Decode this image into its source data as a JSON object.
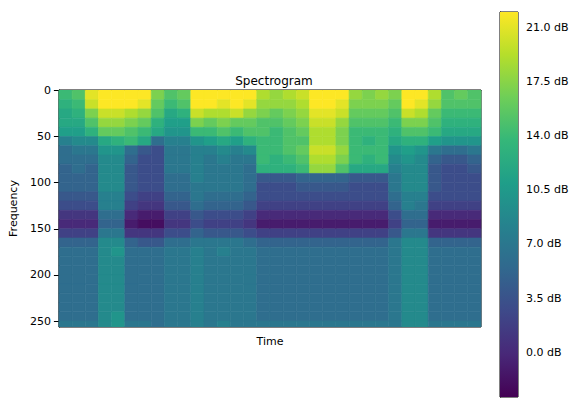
{
  "chart_data": {
    "type": "heatmap",
    "title": "Spectrogram",
    "x_label": "Time",
    "y_label": "Frequency",
    "tick_labels": "y",
    "grid": false,
    "xlim": [
      0,
      32
    ],
    "ylim": [
      256.5,
      -0.5
    ],
    "yticks": [
      0,
      50,
      100,
      150,
      200,
      250
    ],
    "x_bins": [
      0,
      1,
      2,
      3,
      4,
      5,
      6,
      7,
      8,
      9,
      10,
      11,
      12,
      13,
      14,
      15,
      16,
      17,
      18,
      19,
      20,
      21,
      22,
      23,
      24,
      25,
      26,
      27,
      28,
      29,
      30,
      31,
      32
    ],
    "y_bins": [
      -0.5,
      10,
      20,
      30,
      40,
      50,
      60,
      70,
      80,
      90,
      100,
      110,
      120,
      130,
      140,
      150,
      160,
      170,
      180,
      190,
      200,
      210,
      220,
      230,
      240,
      250,
      256.5
    ],
    "cells": [
      [
        14,
        13,
        12,
        12,
        11,
        8,
        6,
        6,
        5,
        5,
        5,
        4,
        3,
        1,
        0,
        2,
        5,
        6,
        6,
        6,
        6,
        6,
        6,
        6,
        6,
        7
      ],
      [
        15,
        14,
        13,
        12,
        11,
        9,
        7,
        6,
        6,
        5,
        5,
        4,
        3,
        1,
        0,
        2,
        5,
        6,
        6,
        6,
        6,
        6,
        6,
        6,
        6,
        7
      ],
      [
        21,
        20,
        17,
        15,
        13,
        9,
        7,
        6,
        5,
        5,
        5,
        4,
        3,
        1,
        0,
        2,
        5,
        6,
        6,
        6,
        6,
        6,
        6,
        6,
        6,
        7
      ],
      [
        22,
        22,
        20,
        18,
        16,
        12,
        10,
        9,
        9,
        9,
        9,
        8,
        8,
        6,
        5,
        7,
        9,
        9,
        9,
        9,
        9,
        9,
        9,
        9,
        9,
        9
      ],
      [
        22,
        22,
        20,
        18,
        16,
        13,
        10,
        9,
        9,
        9,
        9,
        8,
        8,
        6,
        5,
        7,
        9,
        10,
        9,
        9,
        9,
        9,
        9,
        9,
        10,
        10
      ],
      [
        22,
        22,
        19,
        17,
        15,
        14,
        6,
        5,
        4,
        4,
        4,
        3,
        2,
        0,
        -1,
        1,
        5,
        6,
        6,
        6,
        6,
        6,
        6,
        6,
        6,
        7
      ],
      [
        22,
        21,
        18,
        16,
        14,
        12,
        4,
        3,
        3,
        3,
        3,
        2,
        1,
        -1,
        -2,
        1,
        4,
        6,
        6,
        6,
        6,
        6,
        6,
        6,
        6,
        7
      ],
      [
        17,
        16,
        15,
        13,
        12,
        6,
        3,
        3,
        3,
        3,
        3,
        2,
        1,
        -1,
        -2,
        1,
        4,
        6,
        6,
        6,
        6,
        6,
        6,
        6,
        6,
        6
      ],
      [
        15,
        14,
        12,
        11,
        10,
        8,
        7,
        7,
        7,
        6,
        6,
        5,
        4,
        2,
        1,
        3,
        6,
        7,
        7,
        7,
        7,
        7,
        7,
        7,
        7,
        7
      ],
      [
        16,
        15,
        13,
        11,
        10,
        8,
        7,
        7,
        7,
        6,
        6,
        5,
        4,
        2,
        1,
        3,
        6,
        7,
        7,
        7,
        7,
        7,
        7,
        7,
        7,
        7
      ],
      [
        22,
        22,
        20,
        17,
        14,
        10,
        8,
        8,
        8,
        8,
        7,
        7,
        6,
        4,
        3,
        5,
        7,
        8,
        8,
        8,
        8,
        8,
        8,
        8,
        8,
        8
      ],
      [
        22,
        22,
        19,
        16,
        14,
        11,
        8,
        7,
        7,
        7,
        7,
        6,
        5,
        3,
        2,
        4,
        7,
        7,
        7,
        7,
        7,
        7,
        7,
        7,
        7,
        7
      ],
      [
        22,
        21,
        19,
        17,
        15,
        12,
        9,
        8,
        7,
        7,
        7,
        6,
        5,
        3,
        2,
        4,
        7,
        8,
        7,
        7,
        7,
        7,
        7,
        7,
        7,
        8
      ],
      [
        22,
        22,
        20,
        16,
        14,
        11,
        8,
        7,
        7,
        7,
        7,
        6,
        5,
        3,
        2,
        4,
        7,
        7,
        7,
        7,
        7,
        7,
        7,
        7,
        7,
        7
      ],
      [
        22,
        21,
        18,
        16,
        15,
        13,
        9,
        7,
        6,
        6,
        6,
        5,
        4,
        2,
        1,
        3,
        6,
        7,
        7,
        7,
        7,
        7,
        7,
        7,
        7,
        7
      ],
      [
        19,
        18,
        17,
        15,
        15,
        14,
        14,
        14,
        13,
        4,
        3,
        3,
        2,
        0,
        -1,
        2,
        5,
        6,
        6,
        6,
        6,
        6,
        6,
        6,
        6,
        7
      ],
      [
        18,
        18,
        16,
        15,
        14,
        14,
        14,
        13,
        13,
        4,
        3,
        3,
        2,
        0,
        -1,
        2,
        5,
        6,
        6,
        6,
        6,
        6,
        6,
        6,
        6,
        7
      ],
      [
        19,
        18,
        17,
        16,
        15,
        15,
        15,
        14,
        13,
        4,
        3,
        3,
        2,
        0,
        -1,
        2,
        5,
        6,
        6,
        6,
        6,
        6,
        6,
        6,
        6,
        7
      ],
      [
        20,
        19,
        18,
        17,
        16,
        15,
        16,
        15,
        14,
        5,
        4,
        3,
        2,
        0,
        -1,
        2,
        5,
        6,
        6,
        6,
        6,
        6,
        6,
        6,
        6,
        7
      ],
      [
        22,
        22,
        21,
        20,
        19,
        19,
        20,
        19,
        18,
        5,
        4,
        3,
        2,
        0,
        -1,
        2,
        5,
        6,
        6,
        6,
        6,
        6,
        6,
        6,
        6,
        7
      ],
      [
        22,
        22,
        21,
        20,
        19,
        19,
        20,
        19,
        18,
        5,
        4,
        3,
        2,
        0,
        -1,
        2,
        5,
        6,
        6,
        6,
        6,
        6,
        6,
        6,
        6,
        7
      ],
      [
        22,
        21,
        20,
        18,
        17,
        17,
        18,
        17,
        15,
        5,
        4,
        3,
        2,
        0,
        -1,
        2,
        5,
        6,
        6,
        6,
        6,
        6,
        6,
        6,
        6,
        7
      ],
      [
        18,
        17,
        16,
        15,
        14,
        14,
        14,
        14,
        12,
        4,
        3,
        3,
        2,
        0,
        -1,
        2,
        5,
        6,
        6,
        6,
        6,
        6,
        6,
        6,
        6,
        7
      ],
      [
        17,
        17,
        16,
        15,
        14,
        13,
        14,
        13,
        12,
        4,
        3,
        3,
        2,
        0,
        -1,
        2,
        5,
        6,
        6,
        6,
        6,
        6,
        6,
        6,
        6,
        7
      ],
      [
        18,
        17,
        16,
        15,
        14,
        14,
        14,
        14,
        12,
        4,
        3,
        3,
        2,
        0,
        -1,
        2,
        5,
        6,
        6,
        6,
        6,
        6,
        6,
        6,
        6,
        7
      ],
      [
        17,
        16,
        15,
        14,
        13,
        12,
        10,
        9,
        8,
        7,
        7,
        6,
        5,
        3,
        2,
        4,
        7,
        7,
        7,
        7,
        7,
        7,
        7,
        7,
        7,
        7
      ],
      [
        22,
        22,
        20,
        17,
        15,
        13,
        11,
        10,
        9,
        9,
        9,
        8,
        8,
        6,
        5,
        7,
        9,
        9,
        9,
        9,
        9,
        9,
        9,
        9,
        9,
        9
      ],
      [
        22,
        21,
        19,
        17,
        15,
        13,
        10,
        9,
        9,
        9,
        9,
        8,
        7,
        6,
        5,
        7,
        9,
        9,
        9,
        9,
        9,
        9,
        9,
        9,
        9,
        9
      ],
      [
        19,
        18,
        16,
        15,
        14,
        11,
        7,
        5,
        4,
        4,
        4,
        3,
        2,
        0,
        -1,
        1,
        5,
        6,
        6,
        6,
        6,
        6,
        6,
        6,
        6,
        7
      ],
      [
        15,
        15,
        14,
        13,
        12,
        10,
        6,
        4,
        3,
        3,
        3,
        3,
        2,
        0,
        -1,
        1,
        5,
        6,
        6,
        6,
        6,
        6,
        6,
        6,
        6,
        7
      ],
      [
        16,
        15,
        14,
        13,
        12,
        10,
        6,
        4,
        3,
        3,
        3,
        3,
        2,
        0,
        -1,
        1,
        5,
        6,
        6,
        6,
        6,
        6,
        6,
        6,
        6,
        7
      ],
      [
        15,
        15,
        14,
        13,
        12,
        10,
        7,
        5,
        4,
        3,
        3,
        3,
        2,
        0,
        -1,
        1,
        5,
        6,
        6,
        6,
        6,
        6,
        6,
        6,
        6,
        7
      ]
    ],
    "colorbar": {
      "range": [
        -2.9,
        22.0
      ],
      "ticks": [
        {
          "value": 0,
          "label": "0.0 dB"
        },
        {
          "value": 3.5,
          "label": "3.5 dB"
        },
        {
          "value": 7,
          "label": "7.0 dB"
        },
        {
          "value": 10.5,
          "label": "10.5 dB"
        },
        {
          "value": 14,
          "label": "14.0 dB"
        },
        {
          "value": 17.5,
          "label": "17.5 dB"
        },
        {
          "value": 21,
          "label": "21.0 dB"
        }
      ]
    }
  }
}
